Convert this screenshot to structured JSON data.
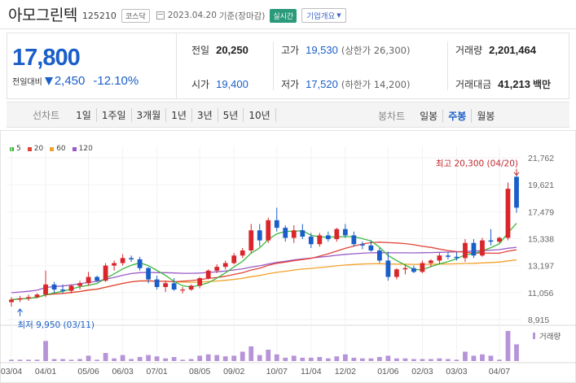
{
  "header": {
    "name": "아모그린텍",
    "code": "125210",
    "market": "코스닥",
    "date": "2023.04.20",
    "date_suffix": "기준(장마감)",
    "realtime": "실시간",
    "company_btn": "기업개요"
  },
  "price": {
    "current": "17,800",
    "change_label": "전일대비",
    "change": "2,450",
    "rate": "-12.10%",
    "direction": "down"
  },
  "stats": {
    "prev_label": "전일",
    "prev": "20,250",
    "open_label": "시가",
    "open": "19,400",
    "high_label": "고가",
    "high": "19,530",
    "high_limit": "(상한가 26,300)",
    "low_label": "저가",
    "low": "17,520",
    "low_limit": "(하한가 14,200)",
    "volume_label": "거래량",
    "volume": "2,201,464",
    "amount_label": "거래대금",
    "amount": "41,213",
    "amount_unit": "백만"
  },
  "periods": {
    "label": "선차트",
    "items": [
      "1일",
      "1주일",
      "3개월",
      "1년",
      "3년",
      "5년",
      "10년"
    ],
    "candle_label": "봉차트",
    "candles": [
      "일봉",
      "주봉",
      "월봉"
    ],
    "active_candle": "주봉"
  },
  "colors": {
    "up": "#d9262b",
    "down": "#1a5ec9",
    "ma5": "#3cb83c",
    "ma20": "#e0443a",
    "ma60": "#f2a12a",
    "ma120": "#9a5bc8",
    "volume": "#b793d8"
  },
  "legend": [
    {
      "label": "5",
      "color": "#3cb83c"
    },
    {
      "label": "20",
      "color": "#e0443a"
    },
    {
      "label": "60",
      "color": "#f2a12a"
    },
    {
      "label": "120",
      "color": "#9a5bc8"
    }
  ],
  "chart_data": {
    "type": "candlestick",
    "ylim": [
      8915,
      21762
    ],
    "yticks": [
      "21,762",
      "19,621",
      "17,479",
      "15,338",
      "13,197",
      "11,056",
      "8,915"
    ],
    "xticks": [
      "03/04",
      "04/01",
      "05/06",
      "06/03",
      "07/01",
      "08/05",
      "09/02",
      "10/07",
      "11/04",
      "12/02",
      "01/06",
      "02/03",
      "03/03",
      "04/07"
    ],
    "xtick_index": [
      0,
      4,
      9,
      13,
      17,
      22,
      26,
      31,
      35,
      39,
      44,
      48,
      52,
      57
    ],
    "high_annotation": "최고 20,300 (04/20)",
    "low_annotation": "최저 9,950 (03/11)",
    "volume_label": "거래량",
    "candles": [
      [
        10300,
        10700,
        9950,
        10500
      ],
      [
        10500,
        10800,
        10300,
        10600
      ],
      [
        10600,
        10900,
        10400,
        10700
      ],
      [
        10700,
        11000,
        10600,
        10900
      ],
      [
        10900,
        12800,
        10700,
        11700
      ],
      [
        11700,
        11900,
        11000,
        11300
      ],
      [
        11300,
        11700,
        11000,
        11200
      ],
      [
        11200,
        11700,
        11000,
        11600
      ],
      [
        11600,
        12000,
        11300,
        11800
      ],
      [
        11800,
        12700,
        11600,
        12300
      ],
      [
        12300,
        12400,
        11900,
        12000
      ],
      [
        12000,
        13400,
        11900,
        13200
      ],
      [
        13200,
        13600,
        12800,
        13400
      ],
      [
        13400,
        14100,
        13200,
        13800
      ],
      [
        13800,
        14000,
        13500,
        13700
      ],
      [
        13700,
        13900,
        12800,
        13000
      ],
      [
        13000,
        13100,
        11800,
        12100
      ],
      [
        12100,
        12400,
        11300,
        11500
      ],
      [
        11500,
        12000,
        11100,
        11800
      ],
      [
        11800,
        12200,
        11200,
        11300
      ],
      [
        11300,
        11500,
        11000,
        11300
      ],
      [
        11300,
        11700,
        11200,
        11600
      ],
      [
        11600,
        12300,
        11400,
        12200
      ],
      [
        12200,
        12900,
        12100,
        12800
      ],
      [
        12800,
        13300,
        12600,
        13100
      ],
      [
        13100,
        13600,
        12900,
        13400
      ],
      [
        13400,
        14200,
        13300,
        14000
      ],
      [
        14000,
        14600,
        13800,
        14400
      ],
      [
        14400,
        16500,
        14200,
        16000
      ],
      [
        16000,
        16500,
        14700,
        15200
      ],
      [
        15200,
        17000,
        15000,
        16800
      ],
      [
        16800,
        17800,
        15900,
        16200
      ],
      [
        16200,
        16400,
        15100,
        15400
      ],
      [
        15400,
        16400,
        15000,
        16000
      ],
      [
        16000,
        16500,
        15300,
        15500
      ],
      [
        15500,
        15800,
        14600,
        14900
      ],
      [
        14900,
        15800,
        14700,
        15600
      ],
      [
        15600,
        15900,
        15100,
        15300
      ],
      [
        15300,
        16200,
        15100,
        16100
      ],
      [
        16100,
        16500,
        15400,
        15600
      ],
      [
        15600,
        15900,
        14700,
        14900
      ],
      [
        14900,
        15100,
        14500,
        14800
      ],
      [
        14800,
        15200,
        14300,
        14400
      ],
      [
        14400,
        14600,
        13400,
        13600
      ],
      [
        13600,
        14300,
        12000,
        12300
      ],
      [
        12300,
        13000,
        12100,
        12900
      ],
      [
        12900,
        13300,
        12500,
        13000
      ],
      [
        13000,
        13200,
        12600,
        12700
      ],
      [
        12700,
        13600,
        12600,
        13400
      ],
      [
        13400,
        13700,
        13100,
        13600
      ],
      [
        13600,
        14200,
        13300,
        14000
      ],
      [
        14000,
        14300,
        13700,
        13900
      ],
      [
        13900,
        14300,
        13600,
        13800
      ],
      [
        13800,
        15300,
        13500,
        15000
      ],
      [
        15000,
        15300,
        13800,
        14000
      ],
      [
        14000,
        15400,
        13900,
        15200
      ],
      [
        15200,
        16100,
        14800,
        15100
      ],
      [
        15100,
        15500,
        15000,
        15400
      ],
      [
        15400,
        19800,
        15200,
        19300
      ],
      [
        20250,
        20300,
        17400,
        17800
      ]
    ],
    "volumes": [
      2,
      2,
      2,
      2,
      30,
      3,
      3,
      2,
      3,
      8,
      2,
      12,
      4,
      9,
      3,
      6,
      9,
      7,
      4,
      6,
      2,
      3,
      8,
      10,
      9,
      7,
      8,
      14,
      22,
      9,
      17,
      10,
      5,
      8,
      5,
      5,
      6,
      4,
      7,
      10,
      5,
      4,
      4,
      6,
      8,
      4,
      4,
      3,
      3,
      3,
      4,
      3,
      2,
      14,
      8,
      10,
      8,
      2,
      45,
      25
    ]
  }
}
